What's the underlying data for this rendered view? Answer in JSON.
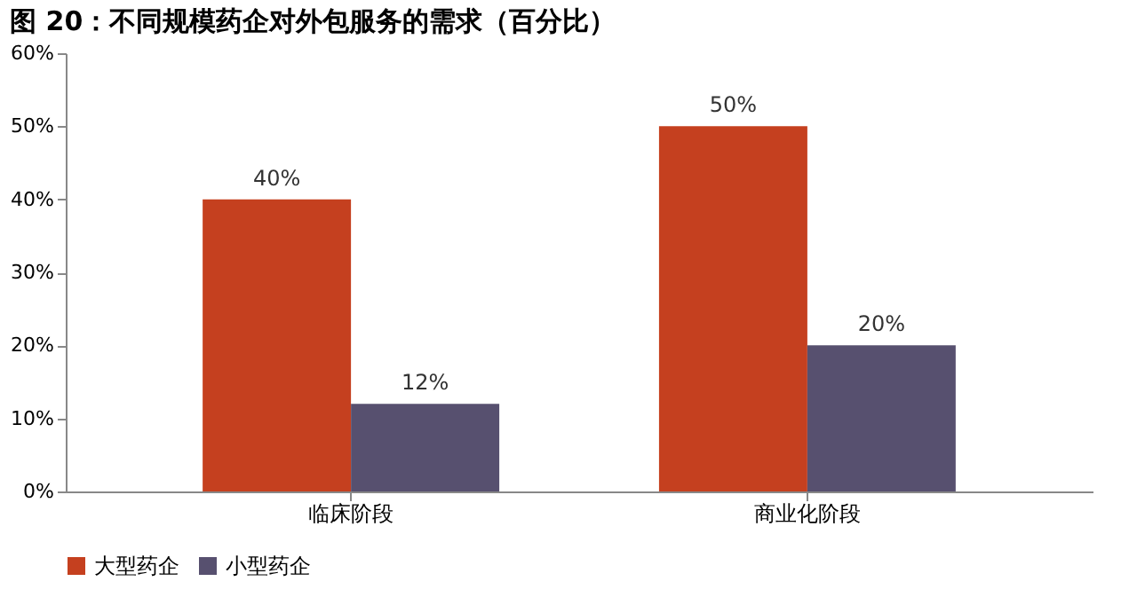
{
  "chart_data": {
    "type": "bar",
    "title": "图 20：不同规模药企对外包服务的需求（百分比）",
    "categories": [
      "临床阶段",
      "商业化阶段"
    ],
    "series": [
      {
        "name": "大型药企",
        "color": "#c5401f",
        "values": [
          40,
          50
        ]
      },
      {
        "name": "小型药企",
        "color": "#57506f",
        "values": [
          12,
          20
        ]
      }
    ],
    "ylim": [
      0,
      60
    ],
    "yticks": [
      {
        "value": 0,
        "label": "0%"
      },
      {
        "value": 10,
        "label": "10%"
      },
      {
        "value": 20,
        "label": "20%"
      },
      {
        "value": 30,
        "label": "30%"
      },
      {
        "value": 40,
        "label": "40%"
      },
      {
        "value": 50,
        "label": "50%"
      },
      {
        "value": 60,
        "label": "60%"
      }
    ],
    "value_labels": [
      [
        "40%",
        "50%"
      ],
      [
        "12%",
        "20%"
      ]
    ],
    "grid": false,
    "legend": "bottom"
  }
}
